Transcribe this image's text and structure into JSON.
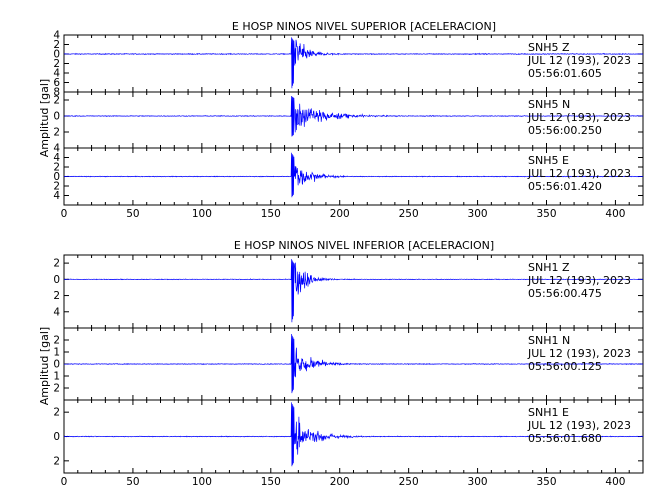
{
  "chart_data": [
    {
      "type": "line",
      "title": "E HOSP NINOS NIVEL SUPERIOR [ACELERACION]",
      "ylabel": "Amplitud [gal]",
      "xlabel": "",
      "xlim": [
        0,
        420
      ],
      "x_ticks": [
        0,
        50,
        100,
        150,
        200,
        250,
        300,
        350,
        400
      ],
      "line_color": "#0000ff",
      "grid": false,
      "series": [
        {
          "name": "SNH5 Z",
          "station": "SNH5",
          "component": "Z",
          "date": "JUL 12 (193), 2023",
          "time": "05:56:01.605",
          "ylim": [
            -8,
            4
          ],
          "y_ticks": [
            4,
            2,
            0,
            -2,
            -4,
            -6,
            -8
          ],
          "y_tick_labels": [
            "4",
            "2",
            "0",
            "2",
            "4",
            "6",
            "8"
          ],
          "onset_s": 165,
          "peak_positive": 3.5,
          "peak_negative": -7.5,
          "noise_level": 0.15,
          "decay_s": 8
        },
        {
          "name": "SNH5 N",
          "station": "SNH5",
          "component": "N",
          "date": "JUL 12 (193), 2023",
          "time": "05:56:00.250",
          "ylim": [
            -4,
            3
          ],
          "y_ticks": [
            2,
            0,
            -2,
            -4
          ],
          "y_tick_labels": [
            "2",
            "0",
            "2",
            "4"
          ],
          "onset_s": 165,
          "peak_positive": 2.5,
          "peak_negative": -2.6,
          "noise_level": 0.08,
          "decay_s": 18
        },
        {
          "name": "SNH5 E",
          "station": "SNH5",
          "component": "E",
          "date": "JUL 12 (193), 2023",
          "time": "05:56:01.420",
          "ylim": [
            -6,
            6
          ],
          "y_ticks": [
            4,
            2,
            0,
            -2,
            -4
          ],
          "y_tick_labels": [
            "4",
            "2",
            "0",
            "2",
            "4"
          ],
          "onset_s": 165,
          "peak_positive": 5,
          "peak_negative": -4.5,
          "noise_level": 0.12,
          "decay_s": 10
        }
      ]
    },
    {
      "type": "line",
      "title": "E HOSP NINOS NIVEL INFERIOR [ACELERACION]",
      "ylabel": "Amplitud [gal]",
      "xlabel": "",
      "xlim": [
        0,
        420
      ],
      "x_ticks": [
        0,
        50,
        100,
        150,
        200,
        250,
        300,
        350,
        400
      ],
      "line_color": "#0000ff",
      "grid": false,
      "series": [
        {
          "name": "SNH1 Z",
          "station": "SNH1",
          "component": "Z",
          "date": "JUL 12 (193), 2023",
          "time": "05:56:00.475",
          "ylim": [
            -6,
            3
          ],
          "y_ticks": [
            2,
            0,
            -2,
            -4
          ],
          "y_tick_labels": [
            "2",
            "0",
            "2",
            "4"
          ],
          "onset_s": 165,
          "peak_positive": 2.5,
          "peak_negative": -5.5,
          "noise_level": 0.06,
          "decay_s": 8
        },
        {
          "name": "SNH1 N",
          "station": "SNH1",
          "component": "N",
          "date": "JUL 12 (193), 2023",
          "time": "05:56:00.125",
          "ylim": [
            -3,
            3
          ],
          "y_ticks": [
            2,
            1,
            0,
            -1,
            -2
          ],
          "y_tick_labels": [
            "2",
            "1",
            "0",
            "1",
            "2"
          ],
          "onset_s": 165,
          "peak_positive": 2.5,
          "peak_negative": -2.5,
          "noise_level": 0.05,
          "decay_s": 10
        },
        {
          "name": "SNH1 E",
          "station": "SNH1",
          "component": "E",
          "date": "JUL 12 (193), 2023",
          "time": "05:56:01.680",
          "ylim": [
            -3,
            3
          ],
          "y_ticks": [
            2,
            0,
            -2
          ],
          "y_tick_labels": [
            "2",
            "0",
            "2"
          ],
          "onset_s": 165,
          "peak_positive": 2.8,
          "peak_negative": -2.5,
          "noise_level": 0.05,
          "decay_s": 12
        }
      ]
    }
  ]
}
